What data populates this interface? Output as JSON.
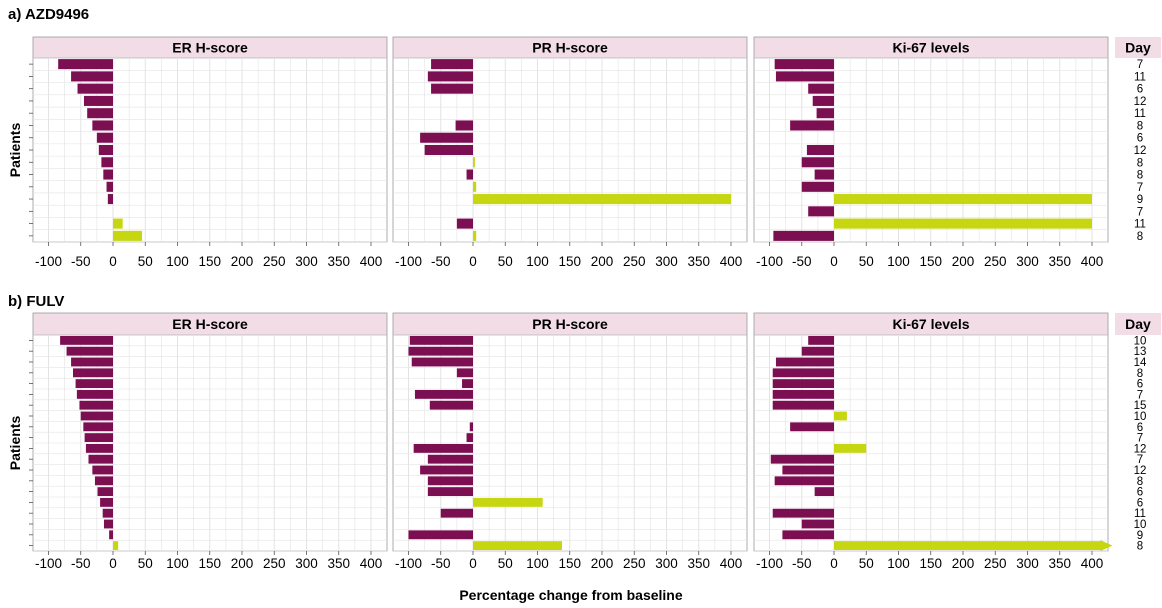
{
  "figure": {
    "x_axis_label": "Percentage change from baseline",
    "y_axis_label": "Patients",
    "day_header": "Day"
  },
  "colors": {
    "decrease": "#7b0f52",
    "increase": "#c6d611",
    "panel_header_bg": "#f2dde6",
    "grid": "#e3e3e3"
  },
  "chart_data": [
    {
      "title": "a) AZD9496",
      "type": "bar",
      "orientation": "horizontal",
      "xlim": [
        -110,
        410
      ],
      "x_ticks": [
        -100,
        -50,
        0,
        50,
        100,
        150,
        200,
        250,
        300,
        350,
        400
      ],
      "days": [
        "7",
        "11",
        "6",
        "12",
        "11",
        "8",
        "6",
        "12",
        "8",
        "8",
        "7",
        "9",
        "7",
        "11",
        "8"
      ],
      "panels": [
        {
          "title": "ER H-score",
          "values": [
            -85,
            -65,
            -55,
            -45,
            -40,
            -32,
            -25,
            -22,
            -18,
            -15,
            -10,
            -8,
            null,
            15,
            45
          ]
        },
        {
          "title": "PR H-score",
          "values": [
            -65,
            -70,
            -65,
            null,
            null,
            -27,
            -82,
            -75,
            3,
            -10,
            5,
            400,
            null,
            -25,
            5
          ]
        },
        {
          "title": "Ki-67 levels",
          "values": [
            -92,
            -90,
            -40,
            -33,
            -27,
            -68,
            null,
            -42,
            -50,
            -30,
            -50,
            400,
            -40,
            400,
            -94
          ]
        }
      ]
    },
    {
      "title": "b) FULV",
      "type": "bar",
      "orientation": "horizontal",
      "xlim": [
        -110,
        410
      ],
      "x_ticks": [
        -100,
        -50,
        0,
        50,
        100,
        150,
        200,
        250,
        300,
        350,
        400
      ],
      "days": [
        "10",
        "13",
        "14",
        "8",
        "6",
        "7",
        "15",
        "10",
        "6",
        "7",
        "12",
        "7",
        "12",
        "8",
        "6",
        "6",
        "11",
        "10",
        "9",
        "8"
      ],
      "panels": [
        {
          "title": "ER H-score",
          "values": [
            -82,
            -72,
            -65,
            -62,
            -58,
            -56,
            -52,
            -50,
            -46,
            -44,
            -42,
            -38,
            -32,
            -28,
            -24,
            -20,
            -16,
            -14,
            -6,
            8
          ]
        },
        {
          "title": "PR H-score",
          "values": [
            -98,
            -100,
            -95,
            -25,
            -17,
            -90,
            -67,
            null,
            -5,
            -10,
            -92,
            -70,
            -82,
            -70,
            -70,
            108,
            -50,
            null,
            -100,
            138
          ]
        },
        {
          "title": "Ki-67 levels",
          "values": [
            -40,
            -50,
            -90,
            -95,
            -95,
            -95,
            -95,
            20,
            -68,
            null,
            50,
            -98,
            -80,
            -92,
            -30,
            null,
            -95,
            -50,
            -80,
            420
          ]
        }
      ]
    }
  ]
}
